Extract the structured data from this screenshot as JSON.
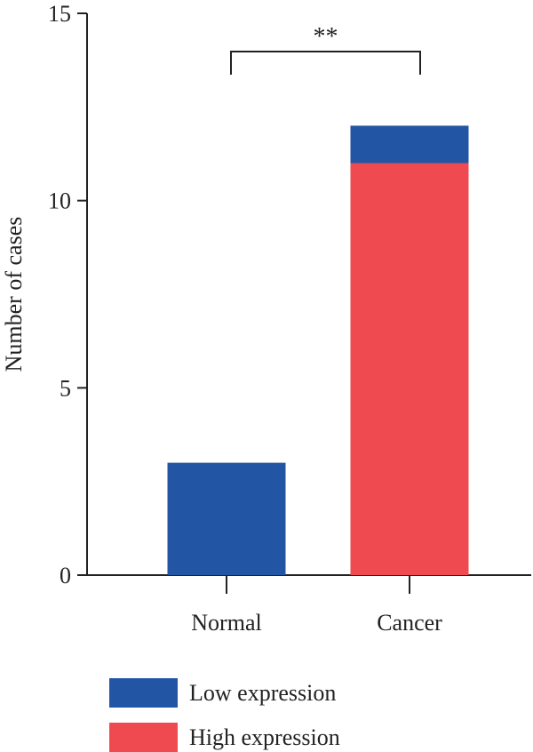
{
  "chart_data": {
    "type": "bar",
    "stacked": true,
    "title": "",
    "xlabel": "",
    "ylabel": "Number of cases",
    "ylim": [
      0,
      15
    ],
    "yticks": [
      0,
      5,
      10,
      15
    ],
    "categories": [
      "Normal",
      "Cancer"
    ],
    "series": [
      {
        "name": "Low expression",
        "values": [
          3,
          1
        ],
        "color": "#2255a4"
      },
      {
        "name": "High expression",
        "values": [
          0,
          11
        ],
        "color": "#ee4a50"
      }
    ],
    "stack_order": [
      "High expression",
      "Low expression"
    ],
    "legend_position": "bottom-left",
    "annotations": [
      {
        "type": "significance-bracket",
        "between": [
          "Normal",
          "Cancer"
        ],
        "text": "**"
      }
    ],
    "grid": false
  }
}
